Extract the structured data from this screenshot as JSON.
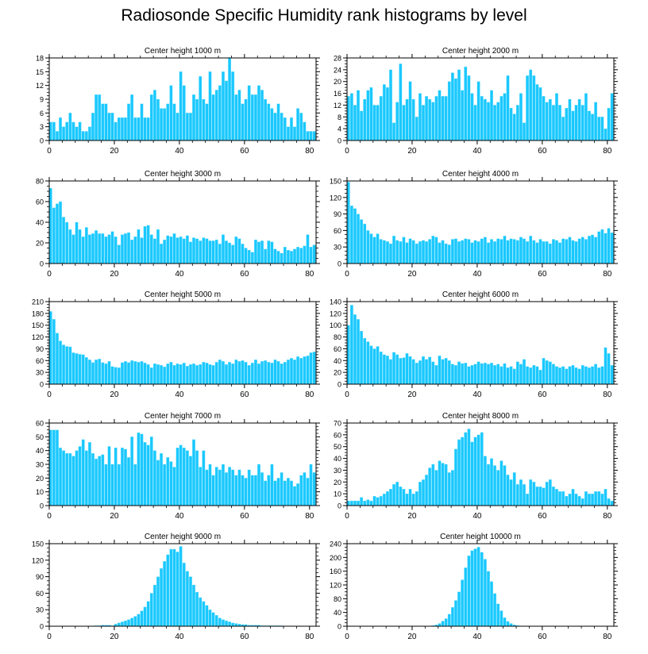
{
  "figure": {
    "title": "Radiosonde Specific Humidity rank histograms by level"
  },
  "colors": {
    "bar": "#1ac8ff",
    "bar_edge": "#7fe2ff",
    "axis": "#000000"
  },
  "chart_data": [
    {
      "type": "bar",
      "title": "Center height 1000 m",
      "xlim": [
        0,
        82
      ],
      "xticks": [
        0,
        20,
        40,
        60,
        80
      ],
      "ylim": [
        0,
        18
      ],
      "yticks": [
        0,
        3,
        6,
        9,
        12,
        15,
        18
      ],
      "values": [
        4,
        4,
        2,
        5,
        3,
        4,
        6,
        4,
        3,
        4,
        2,
        2,
        3,
        6,
        10,
        10,
        8,
        8,
        6,
        6,
        4,
        5,
        5,
        5,
        8,
        10,
        5,
        5,
        8,
        5,
        5,
        10,
        11,
        9,
        7,
        7,
        8,
        12,
        8,
        6,
        15,
        12,
        6,
        6,
        10,
        9,
        14,
        9,
        8,
        15,
        10,
        11,
        12,
        15,
        13,
        18,
        15,
        10,
        11,
        8,
        9,
        12,
        10,
        10,
        12,
        11,
        9,
        8,
        7,
        6,
        8,
        6,
        5,
        3,
        5,
        3,
        7,
        6,
        4,
        2,
        2,
        2
      ]
    },
    {
      "type": "bar",
      "title": "Center height 2000 m",
      "xlim": [
        0,
        82
      ],
      "xticks": [
        0,
        20,
        40,
        60,
        80
      ],
      "ylim": [
        0,
        28
      ],
      "yticks": [
        0,
        4,
        8,
        12,
        16,
        20,
        24,
        28
      ],
      "values": [
        15,
        16,
        12,
        17,
        10,
        14,
        17,
        18,
        12,
        12,
        15,
        19,
        18,
        24,
        6,
        13,
        26,
        12,
        14,
        20,
        14,
        8,
        16,
        12,
        15,
        14,
        13,
        15,
        17,
        15,
        15,
        20,
        23,
        21,
        24,
        17,
        25,
        22,
        16,
        12,
        20,
        15,
        14,
        13,
        17,
        12,
        13,
        15,
        16,
        22,
        11,
        9,
        12,
        16,
        6,
        22,
        24,
        22,
        19,
        18,
        15,
        13,
        14,
        12,
        16,
        12,
        8,
        11,
        14,
        10,
        12,
        14,
        12,
        16,
        10,
        9,
        13,
        8,
        8,
        4,
        11,
        16
      ]
    },
    {
      "type": "bar",
      "title": "Center height 3000 m",
      "xlim": [
        0,
        82
      ],
      "xticks": [
        0,
        20,
        40,
        60,
        80
      ],
      "ylim": [
        0,
        80
      ],
      "yticks": [
        0,
        20,
        40,
        60,
        80
      ],
      "values": [
        73,
        54,
        58,
        60,
        45,
        40,
        33,
        28,
        40,
        33,
        26,
        35,
        28,
        29,
        32,
        29,
        29,
        26,
        28,
        31,
        26,
        18,
        28,
        29,
        30,
        23,
        26,
        33,
        25,
        36,
        37,
        28,
        24,
        33,
        19,
        23,
        27,
        26,
        29,
        25,
        26,
        24,
        27,
        21,
        25,
        24,
        22,
        25,
        24,
        22,
        22,
        23,
        19,
        28,
        22,
        20,
        18,
        26,
        24,
        19,
        15,
        13,
        11,
        23,
        21,
        22,
        14,
        22,
        21,
        14,
        12,
        10,
        16,
        13,
        12,
        14,
        16,
        15,
        17,
        28,
        16,
        18
      ]
    },
    {
      "type": "bar",
      "title": "Center height 4000 m",
      "xlim": [
        0,
        82
      ],
      "xticks": [
        0,
        20,
        40,
        60,
        80
      ],
      "ylim": [
        0,
        150
      ],
      "yticks": [
        0,
        30,
        60,
        90,
        120,
        150
      ],
      "values": [
        148,
        105,
        100,
        90,
        80,
        72,
        60,
        54,
        48,
        54,
        44,
        42,
        40,
        36,
        50,
        42,
        40,
        48,
        38,
        45,
        42,
        36,
        40,
        42,
        40,
        44,
        50,
        48,
        38,
        42,
        36,
        34,
        44,
        45,
        40,
        42,
        45,
        44,
        38,
        42,
        40,
        45,
        48,
        38,
        44,
        40,
        45,
        44,
        50,
        42,
        45,
        44,
        42,
        48,
        45,
        40,
        50,
        42,
        38,
        44,
        40,
        40,
        36,
        44,
        42,
        38,
        45,
        44,
        48,
        42,
        40,
        45,
        48,
        44,
        50,
        52,
        48,
        58,
        62,
        55,
        64,
        56
      ]
    },
    {
      "type": "bar",
      "title": "Center height 5000 m",
      "xlim": [
        0,
        82
      ],
      "xticks": [
        0,
        20,
        40,
        60,
        80
      ],
      "ylim": [
        0,
        210
      ],
      "yticks": [
        0,
        30,
        60,
        90,
        120,
        150,
        180,
        210
      ],
      "values": [
        185,
        165,
        130,
        110,
        100,
        96,
        95,
        80,
        78,
        76,
        75,
        68,
        62,
        55,
        62,
        64,
        55,
        52,
        58,
        45,
        43,
        42,
        55,
        58,
        55,
        60,
        58,
        56,
        58,
        54,
        50,
        42,
        52,
        50,
        48,
        44,
        52,
        56,
        48,
        52,
        50,
        54,
        46,
        50,
        52,
        48,
        50,
        56,
        54,
        50,
        48,
        56,
        62,
        58,
        50,
        56,
        52,
        62,
        58,
        60,
        56,
        48,
        54,
        62,
        52,
        58,
        60,
        56,
        54,
        62,
        58,
        52,
        56,
        62,
        66,
        62,
        70,
        66,
        70,
        72,
        80,
        82
      ]
    },
    {
      "type": "bar",
      "title": "Center height 6000 m",
      "xlim": [
        0,
        82
      ],
      "xticks": [
        0,
        20,
        40,
        60,
        80
      ],
      "ylim": [
        0,
        140
      ],
      "yticks": [
        0,
        20,
        40,
        60,
        80,
        100,
        120,
        140
      ],
      "values": [
        100,
        134,
        118,
        110,
        90,
        78,
        72,
        65,
        60,
        64,
        55,
        50,
        48,
        42,
        54,
        50,
        44,
        45,
        52,
        47,
        42,
        36,
        40,
        47,
        42,
        46,
        38,
        32,
        48,
        42,
        44,
        40,
        34,
        32,
        38,
        35,
        36,
        30,
        32,
        34,
        38,
        35,
        36,
        34,
        36,
        32,
        34,
        30,
        35,
        28,
        30,
        26,
        38,
        34,
        42,
        30,
        28,
        32,
        30,
        24,
        44,
        40,
        38,
        34,
        30,
        28,
        30,
        26,
        30,
        32,
        28,
        26,
        32,
        30,
        28,
        30,
        34,
        28,
        30,
        62,
        52,
        32
      ]
    },
    {
      "type": "bar",
      "title": "Center height 7000 m",
      "xlim": [
        0,
        82
      ],
      "xticks": [
        0,
        20,
        40,
        60,
        80
      ],
      "ylim": [
        0,
        60
      ],
      "yticks": [
        0,
        10,
        20,
        30,
        40,
        50,
        60
      ],
      "values": [
        55,
        55,
        55,
        42,
        40,
        38,
        38,
        36,
        40,
        43,
        48,
        40,
        46,
        38,
        34,
        36,
        37,
        30,
        43,
        30,
        42,
        30,
        42,
        41,
        35,
        50,
        30,
        53,
        52,
        46,
        44,
        50,
        40,
        33,
        38,
        30,
        35,
        32,
        28,
        42,
        44,
        42,
        40,
        36,
        48,
        40,
        28,
        40,
        26,
        30,
        22,
        28,
        26,
        30,
        24,
        28,
        26,
        22,
        26,
        22,
        20,
        26,
        22,
        22,
        30,
        24,
        18,
        22,
        30,
        18,
        20,
        24,
        18,
        20,
        18,
        14,
        16,
        22,
        24,
        20,
        30,
        24
      ]
    },
    {
      "type": "bar",
      "title": "Center height 8000 m",
      "xlim": [
        0,
        82
      ],
      "xticks": [
        0,
        20,
        40,
        60,
        80
      ],
      "ylim": [
        0,
        70
      ],
      "yticks": [
        0,
        10,
        20,
        30,
        40,
        50,
        60,
        70
      ],
      "values": [
        4,
        4,
        4,
        4,
        7,
        4,
        5,
        4,
        8,
        7,
        8,
        10,
        12,
        14,
        18,
        20,
        16,
        14,
        10,
        14,
        10,
        12,
        20,
        22,
        26,
        32,
        35,
        30,
        38,
        36,
        35,
        28,
        30,
        48,
        56,
        58,
        62,
        65,
        54,
        58,
        60,
        62,
        42,
        35,
        40,
        34,
        30,
        38,
        34,
        26,
        22,
        28,
        18,
        22,
        18,
        10,
        22,
        20,
        16,
        16,
        15,
        20,
        22,
        16,
        14,
        12,
        12,
        8,
        10,
        14,
        10,
        8,
        6,
        12,
        10,
        10,
        12,
        12,
        10,
        14,
        6,
        4
      ]
    },
    {
      "type": "bar",
      "title": "Center height 9000 m",
      "xlim": [
        0,
        82
      ],
      "xticks": [
        0,
        20,
        40,
        60,
        80
      ],
      "ylim": [
        0,
        150
      ],
      "yticks": [
        0,
        30,
        60,
        90,
        120,
        150
      ],
      "values": [
        0,
        0,
        0,
        0,
        0,
        0,
        0,
        0,
        0,
        0,
        0,
        0,
        0,
        0,
        1,
        1,
        2,
        2,
        2,
        1,
        4,
        6,
        8,
        10,
        12,
        15,
        18,
        22,
        28,
        35,
        45,
        60,
        75,
        90,
        105,
        118,
        130,
        140,
        140,
        135,
        145,
        115,
        100,
        90,
        75,
        62,
        52,
        45,
        38,
        30,
        25,
        20,
        15,
        12,
        10,
        8,
        6,
        5,
        4,
        3,
        3,
        2,
        2,
        2,
        2,
        1,
        1,
        1,
        1,
        1,
        1,
        1,
        0,
        0,
        0,
        0,
        0,
        0,
        0,
        0,
        0,
        0
      ]
    },
    {
      "type": "bar",
      "title": "Center height 10000 m",
      "xlim": [
        0,
        82
      ],
      "xticks": [
        0,
        20,
        40,
        60,
        80
      ],
      "ylim": [
        0,
        240
      ],
      "yticks": [
        0,
        40,
        80,
        120,
        160,
        200,
        240
      ],
      "values": [
        0,
        0,
        0,
        0,
        0,
        0,
        0,
        0,
        0,
        0,
        0,
        0,
        0,
        0,
        0,
        0,
        0,
        0,
        0,
        0,
        0,
        0,
        0,
        0,
        0,
        0,
        2,
        4,
        8,
        15,
        22,
        35,
        55,
        75,
        100,
        135,
        170,
        205,
        220,
        225,
        230,
        215,
        195,
        160,
        130,
        95,
        65,
        45,
        25,
        14,
        8,
        4,
        2,
        1,
        0,
        0,
        0,
        0,
        0,
        0,
        0,
        0,
        0,
        0,
        0,
        0,
        0,
        0,
        0,
        0,
        0,
        0,
        0,
        0,
        0,
        0,
        0,
        0,
        0,
        0,
        0,
        0
      ]
    }
  ]
}
